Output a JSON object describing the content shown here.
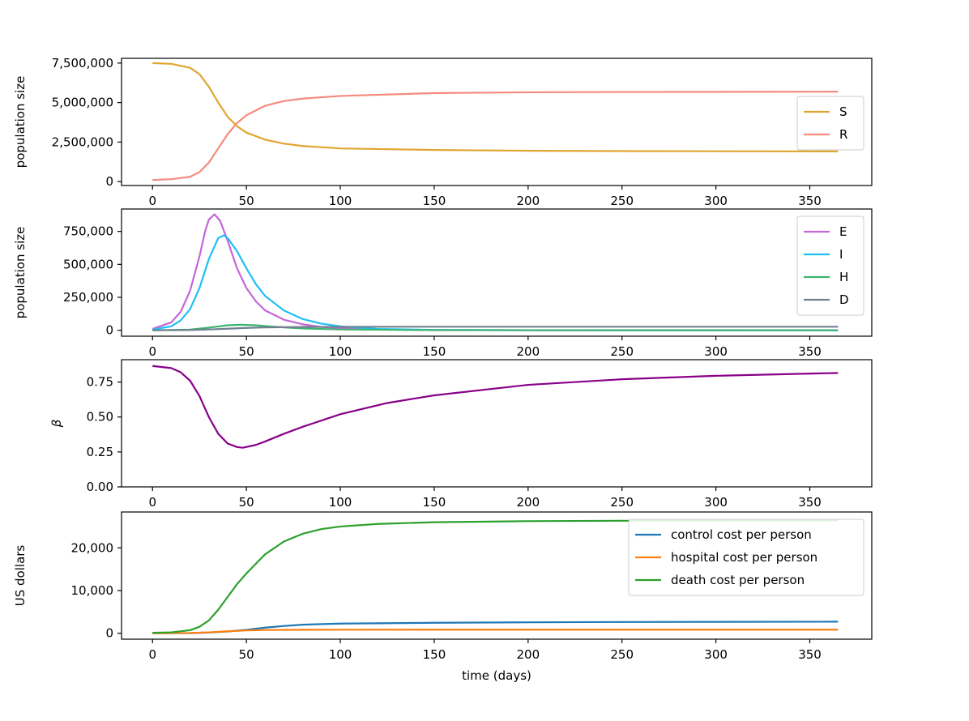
{
  "chart_data": [
    {
      "type": "line",
      "id": "sr",
      "xlabel": "",
      "ylabel": "population size",
      "xlim": [
        -16.5,
        383
      ],
      "ylim": [
        -250000,
        7800000
      ],
      "xticks": [
        0,
        50,
        100,
        150,
        200,
        250,
        300,
        350
      ],
      "yticks": [
        0,
        2500000,
        5000000,
        7500000
      ],
      "ytick_labels": [
        "0",
        "2,500,000",
        "5,000,000",
        "7,500,000"
      ],
      "legend": "right",
      "series": [
        {
          "name": "S",
          "color": "#e0a530",
          "x": [
            0,
            10,
            20,
            25,
            30,
            35,
            40,
            45,
            50,
            60,
            70,
            80,
            100,
            150,
            200,
            250,
            300,
            365
          ],
          "values": [
            7500000,
            7450000,
            7200000,
            6800000,
            6000000,
            5000000,
            4100000,
            3500000,
            3100000,
            2650000,
            2400000,
            2250000,
            2100000,
            2000000,
            1950000,
            1930000,
            1920000,
            1910000
          ]
        },
        {
          "name": "R",
          "color": "#f58a7d",
          "x": [
            0,
            10,
            20,
            25,
            30,
            35,
            40,
            45,
            50,
            60,
            70,
            80,
            100,
            150,
            200,
            250,
            300,
            365
          ],
          "values": [
            100000,
            150000,
            300000,
            600000,
            1200000,
            2100000,
            3000000,
            3700000,
            4200000,
            4800000,
            5100000,
            5250000,
            5420000,
            5600000,
            5650000,
            5670000,
            5680000,
            5690000
          ]
        }
      ]
    },
    {
      "type": "line",
      "id": "eihd",
      "xlabel": "",
      "ylabel": "population size",
      "xlim": [
        -16.5,
        383
      ],
      "ylim": [
        -45000,
        920000
      ],
      "xticks": [
        0,
        50,
        100,
        150,
        200,
        250,
        300,
        350
      ],
      "yticks": [
        0,
        250000,
        500000,
        750000
      ],
      "ytick_labels": [
        "0",
        "250,000",
        "500,000",
        "750,000"
      ],
      "legend": "upper right",
      "series": [
        {
          "name": "E",
          "color": "#c566d9",
          "x": [
            0,
            10,
            15,
            20,
            25,
            28,
            30,
            33,
            36,
            40,
            45,
            50,
            55,
            60,
            70,
            80,
            90,
            100,
            120,
            150,
            200,
            365
          ],
          "values": [
            10000,
            60000,
            140000,
            300000,
            560000,
            750000,
            840000,
            880000,
            830000,
            680000,
            470000,
            320000,
            220000,
            150000,
            80000,
            45000,
            25000,
            15000,
            6000,
            2000,
            500,
            0
          ]
        },
        {
          "name": "I",
          "color": "#1ec0f5",
          "x": [
            0,
            10,
            15,
            20,
            25,
            30,
            35,
            38,
            40,
            45,
            50,
            55,
            60,
            70,
            80,
            90,
            100,
            120,
            150,
            200,
            365
          ],
          "values": [
            5000,
            30000,
            75000,
            160000,
            320000,
            540000,
            700000,
            720000,
            700000,
            600000,
            470000,
            350000,
            260000,
            150000,
            85000,
            50000,
            30000,
            10000,
            3000,
            600,
            0
          ]
        },
        {
          "name": "H",
          "color": "#3cb371",
          "x": [
            0,
            20,
            30,
            40,
            47,
            55,
            60,
            70,
            80,
            100,
            150,
            365
          ],
          "values": [
            0,
            5000,
            20000,
            38000,
            42000,
            38000,
            32000,
            22000,
            14000,
            6000,
            1000,
            0
          ]
        },
        {
          "name": "D",
          "color": "#708090",
          "x": [
            0,
            20,
            30,
            40,
            50,
            60,
            80,
            100,
            150,
            365
          ],
          "values": [
            0,
            2000,
            6000,
            12000,
            18000,
            22000,
            25000,
            26000,
            27000,
            27000
          ]
        }
      ]
    },
    {
      "type": "line",
      "id": "beta",
      "xlabel": "",
      "ylabel": "β",
      "xlim": [
        -16.5,
        383
      ],
      "ylim": [
        0,
        0.91
      ],
      "xticks": [
        0,
        50,
        100,
        150,
        200,
        250,
        300,
        350
      ],
      "yticks": [
        0,
        0.25,
        0.5,
        0.75
      ],
      "ytick_labels": [
        "0.00",
        "0.25",
        "0.50",
        "0.75"
      ],
      "legend": "none",
      "series": [
        {
          "name": "β",
          "color": "#880088",
          "x": [
            0,
            10,
            15,
            20,
            25,
            30,
            35,
            40,
            45,
            48,
            55,
            60,
            70,
            80,
            100,
            125,
            150,
            200,
            250,
            300,
            365
          ],
          "values": [
            0.865,
            0.85,
            0.82,
            0.76,
            0.65,
            0.5,
            0.38,
            0.31,
            0.285,
            0.28,
            0.3,
            0.325,
            0.38,
            0.43,
            0.52,
            0.6,
            0.655,
            0.73,
            0.77,
            0.795,
            0.815
          ]
        }
      ]
    },
    {
      "type": "line",
      "id": "cost",
      "xlabel": "time (days)",
      "ylabel": "US dollars",
      "xlim": [
        -16.5,
        383
      ],
      "ylim": [
        -1400,
        28400
      ],
      "xticks": [
        0,
        50,
        100,
        150,
        200,
        250,
        300,
        350
      ],
      "yticks": [
        0,
        10000,
        20000
      ],
      "ytick_labels": [
        "0",
        "10,000",
        "20,000"
      ],
      "legend": "upper right",
      "series": [
        {
          "name": "control cost per person",
          "color": "#1f77b4",
          "x": [
            0,
            20,
            30,
            40,
            50,
            60,
            70,
            80,
            100,
            150,
            200,
            250,
            300,
            365
          ],
          "values": [
            0,
            30,
            150,
            400,
            800,
            1300,
            1700,
            2000,
            2250,
            2450,
            2550,
            2620,
            2660,
            2700
          ]
        },
        {
          "name": "hospital cost per person",
          "color": "#ff7f0e",
          "x": [
            0,
            20,
            30,
            40,
            50,
            60,
            80,
            100,
            150,
            365
          ],
          "values": [
            0,
            60,
            200,
            450,
            650,
            750,
            800,
            820,
            830,
            830
          ]
        },
        {
          "name": "death cost per person",
          "color": "#2ca02c",
          "x": [
            0,
            10,
            20,
            25,
            30,
            35,
            40,
            45,
            50,
            60,
            70,
            80,
            90,
            100,
            120,
            150,
            200,
            250,
            300,
            365
          ],
          "values": [
            100,
            200,
            700,
            1500,
            3000,
            5500,
            8500,
            11500,
            14000,
            18500,
            21500,
            23300,
            24400,
            25000,
            25600,
            26000,
            26250,
            26350,
            26400,
            26450
          ]
        }
      ]
    }
  ]
}
